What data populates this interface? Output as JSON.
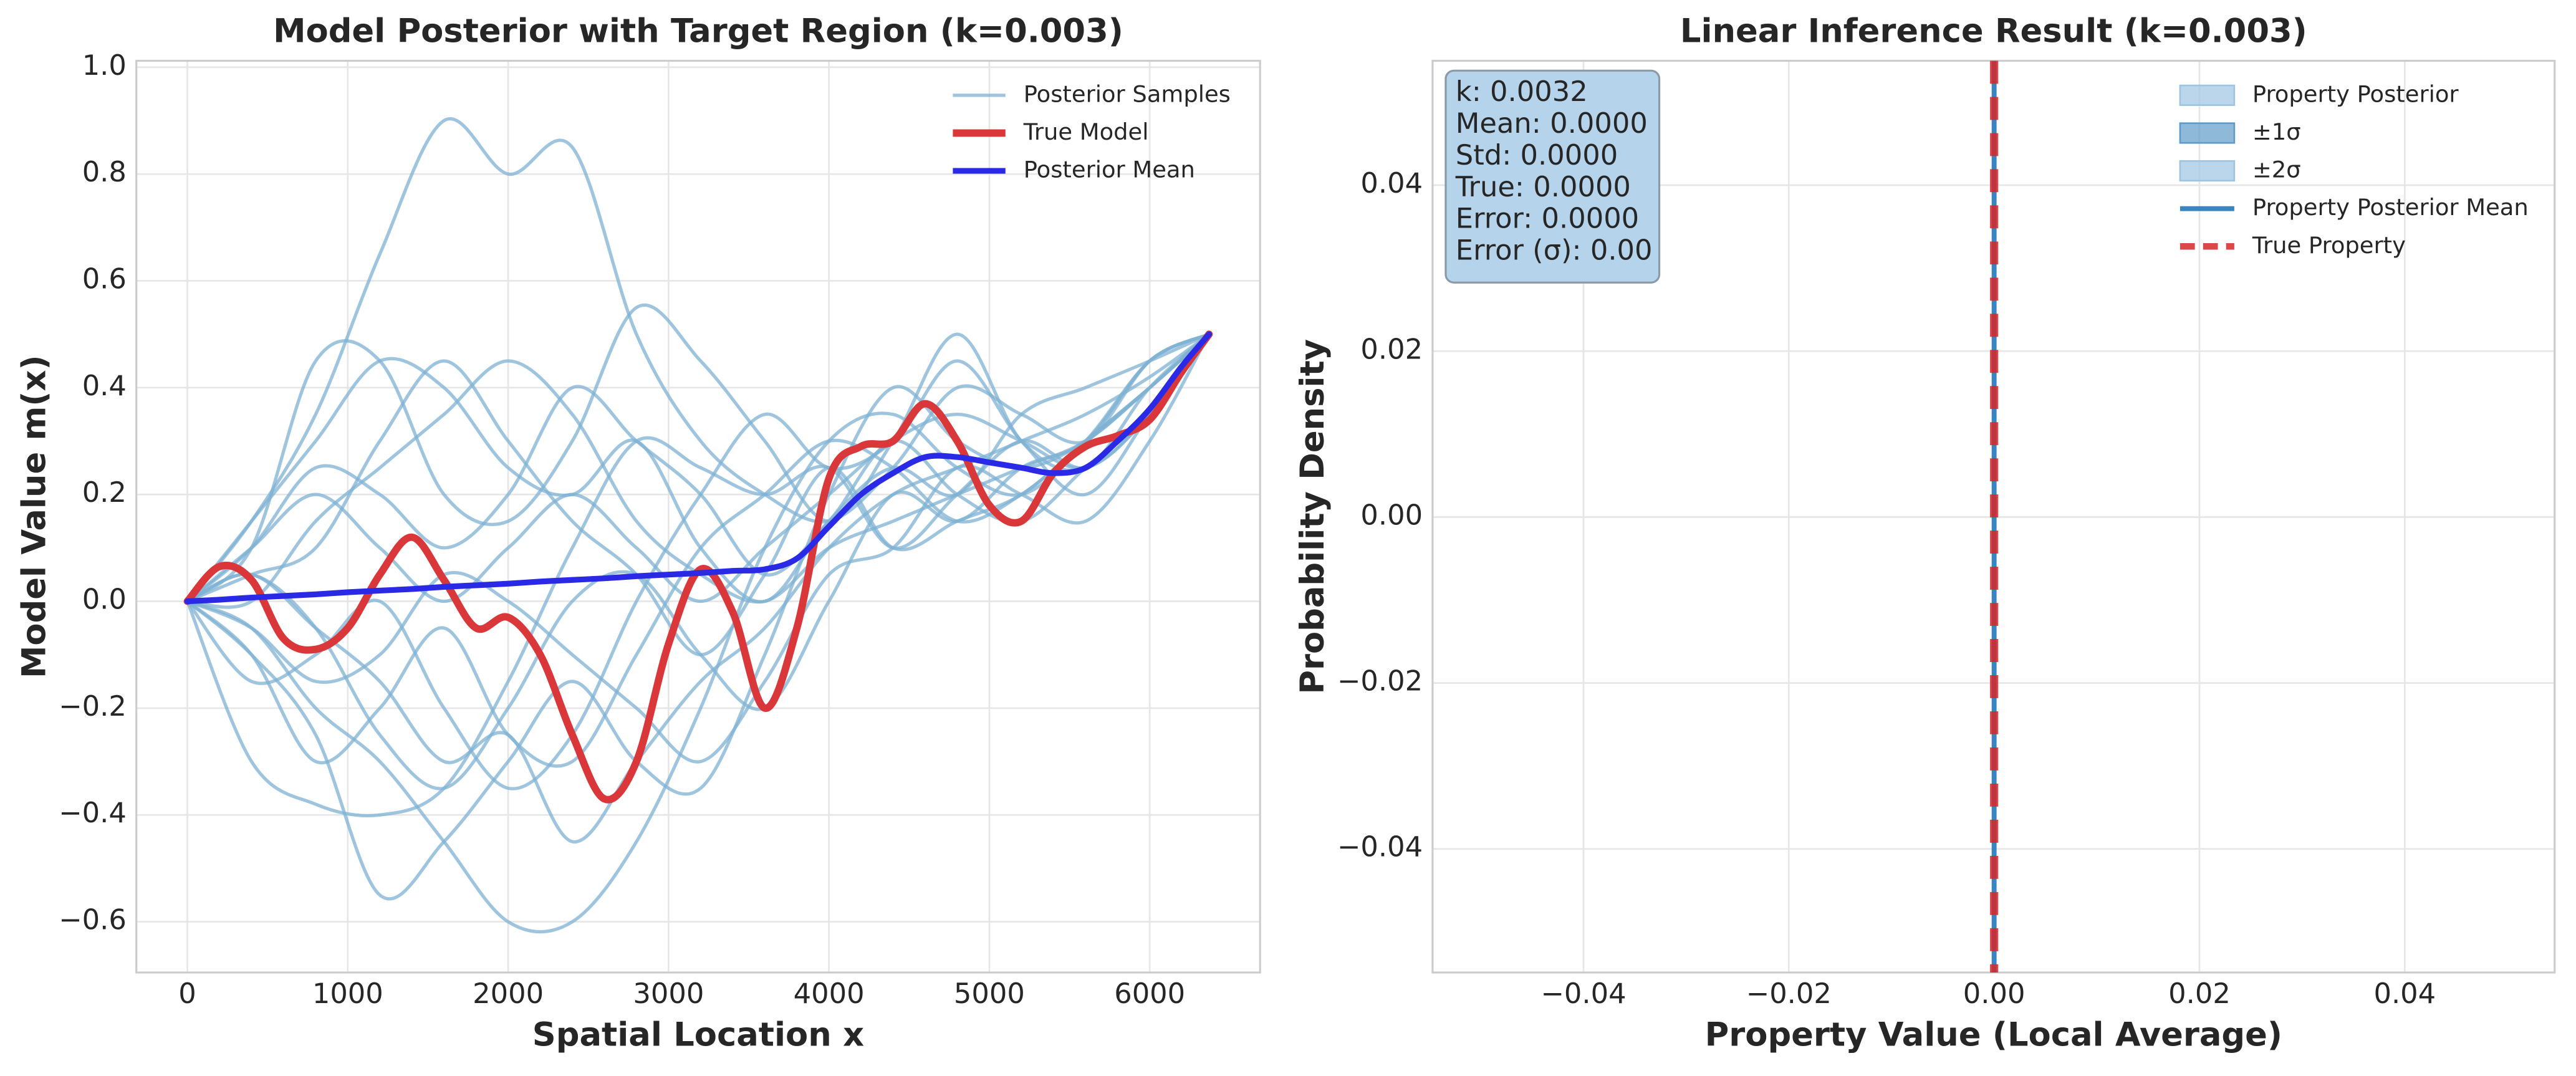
{
  "chart_data": [
    {
      "type": "line",
      "title": "Model Posterior with Target Region (k=0.003)",
      "xlabel": "Spatial Location x",
      "ylabel": "Model Value m(x)",
      "x": [
        0,
        200,
        400,
        600,
        800,
        1000,
        1200,
        1400,
        1600,
        1800,
        2000,
        2200,
        2400,
        2600,
        2800,
        3000,
        3200,
        3400,
        3600,
        3800,
        4000,
        4200,
        4400,
        4600,
        4800,
        5000,
        5200,
        5400,
        5600,
        5800,
        6000,
        6200,
        6370
      ],
      "series": [
        {
          "name": "Posterior Samples",
          "color": "#7fb1d3",
          "x": [
            0,
            400,
            800,
            1200,
            1600,
            2000,
            2400,
            2800,
            3200,
            3600,
            4000,
            4400,
            4800,
            5200,
            5600,
            6000,
            6370
          ],
          "values": [
            [
              0,
              0.15,
              0.35,
              0.65,
              0.9,
              0.8,
              0.85,
              0.5,
              0.3,
              0.2,
              0.15,
              0.25,
              0.4,
              0.35,
              0.3,
              0.45,
              0.5
            ],
            [
              0,
              0.1,
              0.45,
              0.45,
              0.2,
              0.15,
              0.3,
              0.55,
              0.45,
              0.3,
              0.15,
              0.3,
              0.5,
              0.3,
              0.25,
              0.4,
              0.5
            ],
            [
              0,
              -0.3,
              -0.38,
              -0.4,
              -0.35,
              -0.15,
              0.1,
              0.3,
              0.25,
              0.2,
              0.25,
              0.1,
              0.2,
              0.3,
              0.25,
              0.35,
              0.5
            ],
            [
              0,
              -0.1,
              -0.25,
              -0.55,
              -0.45,
              -0.3,
              -0.15,
              -0.3,
              -0.35,
              -0.1,
              0.2,
              0.4,
              0.3,
              0.25,
              0.3,
              0.4,
              0.5
            ],
            [
              0,
              -0.05,
              -0.2,
              -0.3,
              -0.45,
              -0.6,
              -0.6,
              -0.45,
              -0.2,
              0.1,
              0.3,
              0.35,
              0.25,
              0.2,
              0.3,
              0.45,
              0.5
            ],
            [
              0,
              0.1,
              0.2,
              0.1,
              0.0,
              0.1,
              0.2,
              0.1,
              0.0,
              0.1,
              0.2,
              0.3,
              0.35,
              0.3,
              0.25,
              0.35,
              0.5
            ],
            [
              0,
              0.05,
              0.1,
              0.3,
              0.45,
              0.3,
              0.15,
              0.05,
              -0.1,
              0.05,
              0.25,
              0.1,
              0.15,
              0.2,
              0.3,
              0.4,
              0.5
            ],
            [
              0,
              -0.15,
              -0.1,
              0.0,
              -0.2,
              -0.35,
              -0.25,
              0.0,
              0.2,
              0.35,
              0.25,
              0.3,
              0.45,
              0.3,
              0.2,
              0.35,
              0.5
            ],
            [
              0,
              0.05,
              -0.05,
              -0.15,
              -0.3,
              -0.25,
              -0.45,
              -0.3,
              -0.15,
              -0.05,
              0.1,
              0.2,
              0.25,
              0.3,
              0.35,
              0.42,
              0.5
            ],
            [
              0,
              0.0,
              0.15,
              0.25,
              0.35,
              0.45,
              0.35,
              0.15,
              0.05,
              0.0,
              0.1,
              0.15,
              0.2,
              0.25,
              0.3,
              0.4,
              0.5
            ],
            [
              0,
              0.05,
              -0.05,
              -0.25,
              -0.35,
              -0.2,
              0.0,
              0.05,
              -0.1,
              -0.2,
              0.0,
              0.2,
              0.15,
              0.25,
              0.3,
              0.45,
              0.5
            ],
            [
              0,
              0.1,
              0.25,
              0.2,
              0.1,
              0.2,
              0.4,
              0.3,
              0.2,
              0.05,
              0.15,
              0.3,
              0.2,
              0.15,
              0.25,
              0.35,
              0.5
            ],
            [
              0,
              -0.05,
              -0.15,
              -0.1,
              0.05,
              0.0,
              -0.1,
              -0.2,
              -0.3,
              -0.15,
              0.05,
              0.1,
              0.25,
              0.2,
              0.15,
              0.3,
              0.5
            ],
            [
              0,
              0.15,
              0.3,
              0.45,
              0.4,
              0.25,
              0.2,
              0.3,
              0.1,
              0.0,
              0.15,
              0.25,
              0.2,
              0.35,
              0.4,
              0.45,
              0.5
            ],
            [
              0,
              -0.1,
              -0.3,
              -0.2,
              -0.05,
              -0.25,
              -0.3,
              -0.1,
              0.1,
              0.2,
              0.3,
              0.25,
              0.15,
              0.2,
              0.3,
              0.4,
              0.5
            ]
          ]
        },
        {
          "name": "True Model",
          "color": "#d9373a",
          "values": [
            0,
            0.065,
            0.04,
            -0.07,
            -0.09,
            -0.05,
            0.05,
            0.12,
            0.04,
            -0.05,
            -0.03,
            -0.1,
            -0.25,
            -0.37,
            -0.3,
            -0.08,
            0.06,
            -0.02,
            -0.2,
            -0.05,
            0.23,
            0.29,
            0.3,
            0.37,
            0.3,
            0.18,
            0.15,
            0.24,
            0.29,
            0.31,
            0.34,
            0.43,
            0.5
          ]
        },
        {
          "name": "Posterior Mean",
          "color": "#2a2ae6",
          "values": [
            0,
            0.003,
            0.007,
            0.01,
            0.013,
            0.017,
            0.02,
            0.023,
            0.027,
            0.03,
            0.033,
            0.037,
            0.04,
            0.043,
            0.047,
            0.05,
            0.053,
            0.057,
            0.06,
            0.08,
            0.14,
            0.2,
            0.24,
            0.27,
            0.27,
            0.26,
            0.25,
            0.24,
            0.25,
            0.3,
            0.36,
            0.44,
            0.5
          ]
        }
      ],
      "xlim": [
        -318,
        6688
      ],
      "ylim": [
        -0.695,
        1.012
      ],
      "xticks": [
        0,
        1000,
        2000,
        3000,
        4000,
        5000,
        6000
      ],
      "yticks": [
        {
          "value": -0.6,
          "label": "−0.6"
        },
        {
          "value": -0.4,
          "label": "−0.4"
        },
        {
          "value": -0.2,
          "label": "−0.2"
        },
        {
          "value": 0,
          "label": "0.0"
        },
        {
          "value": 0.2,
          "label": "0.2"
        },
        {
          "value": 0.4,
          "label": "0.4"
        },
        {
          "value": 0.6,
          "label": "0.6"
        },
        {
          "value": 0.8,
          "label": "0.8"
        },
        {
          "value": 1,
          "label": "1.0"
        }
      ],
      "grid": true,
      "legend": "upper right"
    },
    {
      "type": "density",
      "title": "Linear Inference Result (k=0.003)",
      "xlabel": "Property Value (Local Average)",
      "ylabel": "Probability Density",
      "series": [
        {
          "name": "Property Posterior",
          "color": "#9ec4e1"
        },
        {
          "name": "±1σ",
          "color": "#5f9bc8"
        },
        {
          "name": "±2σ",
          "color": "#9ec4e1"
        },
        {
          "name": "Property Posterior Mean",
          "color": "#3a84c0",
          "value": 0
        },
        {
          "name": "True Property",
          "color": "#d62728",
          "value": 0
        }
      ],
      "annotation_lines": [
        "k: 0.0032",
        "Mean: 0.0000",
        "Std: 0.0000",
        "True: 0.0000",
        "Error: 0.0000",
        "Error (σ): 0.00"
      ],
      "xlim": [
        -0.0547,
        0.0546
      ],
      "ylim": [
        -0.0549,
        0.055
      ],
      "xticks": [
        {
          "value": -0.04,
          "label": "−0.04"
        },
        {
          "value": -0.02,
          "label": "−0.02"
        },
        {
          "value": 0,
          "label": "0.00"
        },
        {
          "value": 0.02,
          "label": "0.02"
        },
        {
          "value": 0.04,
          "label": "0.04"
        }
      ],
      "yticks": [
        {
          "value": -0.04,
          "label": "−0.04"
        },
        {
          "value": -0.02,
          "label": "−0.02"
        },
        {
          "value": 0,
          "label": "0.00"
        },
        {
          "value": 0.02,
          "label": "0.02"
        },
        {
          "value": 0.04,
          "label": "0.04"
        }
      ],
      "grid": true,
      "legend": "upper right"
    }
  ]
}
